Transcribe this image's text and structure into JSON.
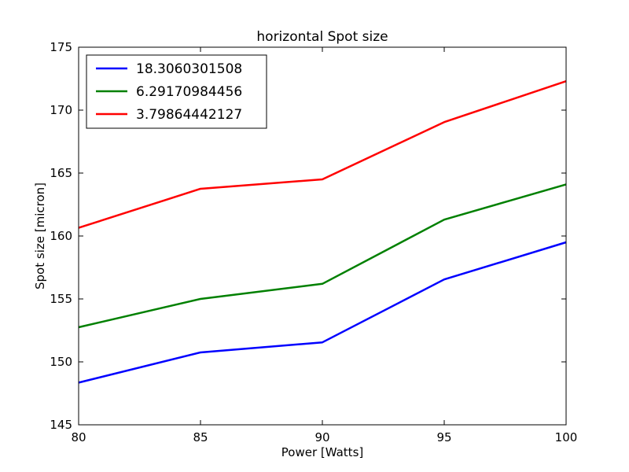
{
  "chart_data": {
    "type": "line",
    "title": "horizontal Spot size",
    "xlabel": "Power [Watts]",
    "ylabel": "Spot size [micron]",
    "x": [
      80,
      85,
      90,
      95,
      100
    ],
    "xlim": [
      80,
      100
    ],
    "ylim": [
      145,
      175
    ],
    "xticks": [
      "80",
      "85",
      "90",
      "95",
      "100"
    ],
    "yticks": [
      "145",
      "150",
      "155",
      "160",
      "165",
      "170",
      "175"
    ],
    "grid": false,
    "legend_position": "top-left",
    "series": [
      {
        "name": "18.3060301508",
        "color": "#0000ff",
        "values": [
          148.35,
          150.75,
          151.55,
          156.55,
          159.5
        ]
      },
      {
        "name": "6.29170984456",
        "color": "#008000",
        "values": [
          152.75,
          155.0,
          156.2,
          161.3,
          164.1
        ]
      },
      {
        "name": "3.79864442127",
        "color": "#ff0000",
        "values": [
          160.65,
          163.75,
          164.5,
          169.05,
          172.3
        ]
      }
    ]
  }
}
